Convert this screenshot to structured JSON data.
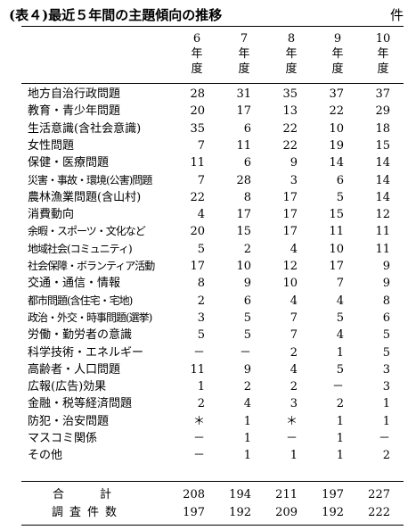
{
  "title": "(表４)最近５年間の主題傾向の推移",
  "unit": "件",
  "columns": [
    {
      "c1": "6",
      "c2": "年",
      "c3": "度"
    },
    {
      "c1": "7",
      "c2": "年",
      "c3": "度"
    },
    {
      "c1": "8",
      "c2": "年",
      "c3": "度"
    },
    {
      "c1": "9",
      "c2": "年",
      "c3": "度"
    },
    {
      "c1": "10",
      "c2": "年",
      "c3": "度"
    }
  ],
  "rows": [
    {
      "label": "地方自治行政問題",
      "v": [
        "28",
        "31",
        "35",
        "37",
        "37"
      ]
    },
    {
      "label": "教育・青少年問題",
      "v": [
        "20",
        "17",
        "13",
        "22",
        "29"
      ]
    },
    {
      "label": "生活意識(含社会意識)",
      "v": [
        "35",
        "6",
        "22",
        "10",
        "18"
      ]
    },
    {
      "label": "女性問題",
      "v": [
        "7",
        "11",
        "22",
        "19",
        "15"
      ]
    },
    {
      "label": "保健・医療問題",
      "v": [
        "11",
        "6",
        "9",
        "14",
        "14"
      ]
    },
    {
      "label": "災害・事故・環境(公害)問題",
      "v": [
        "7",
        "28",
        "3",
        "6",
        "14"
      ]
    },
    {
      "label": "農林漁業問題(含山村)",
      "v": [
        "22",
        "8",
        "17",
        "5",
        "14"
      ]
    },
    {
      "label": "消費動向",
      "v": [
        "4",
        "17",
        "17",
        "15",
        "12"
      ]
    },
    {
      "label": "余暇・スポーツ・文化など",
      "v": [
        "20",
        "15",
        "17",
        "11",
        "11"
      ]
    },
    {
      "label": "地域社会(コミュニティ)",
      "v": [
        "5",
        "2",
        "4",
        "10",
        "11"
      ]
    },
    {
      "label": "社会保障・ボランティア活動",
      "v": [
        "17",
        "10",
        "12",
        "17",
        "9"
      ]
    },
    {
      "label": "交通・通信・情報",
      "v": [
        "8",
        "9",
        "10",
        "7",
        "9"
      ]
    },
    {
      "label": "都市問題(含住宅・宅地)",
      "v": [
        "2",
        "6",
        "4",
        "4",
        "8"
      ]
    },
    {
      "label": "政治・外交・時事問題(選挙)",
      "v": [
        "3",
        "5",
        "7",
        "5",
        "6"
      ]
    },
    {
      "label": "労働・勤労者の意識",
      "v": [
        "5",
        "5",
        "7",
        "4",
        "5"
      ]
    },
    {
      "label": "科学技術・エネルギー",
      "v": [
        "－",
        "－",
        "2",
        "1",
        "5"
      ]
    },
    {
      "label": "高齢者・人口問題",
      "v": [
        "11",
        "9",
        "4",
        "5",
        "3"
      ]
    },
    {
      "label": "広報(広告)効果",
      "v": [
        "1",
        "2",
        "2",
        "－",
        "3"
      ]
    },
    {
      "label": "金融・税等経済問題",
      "v": [
        "2",
        "4",
        "3",
        "2",
        "1"
      ]
    },
    {
      "label": "防犯・治安問題",
      "v": [
        "＊",
        "1",
        "＊",
        "1",
        "1"
      ]
    },
    {
      "label": "マスコミ関係",
      "v": [
        "－",
        "1",
        "－",
        "1",
        "－"
      ]
    },
    {
      "label": "その他",
      "v": [
        "－",
        "1",
        "1",
        "1",
        "2"
      ]
    }
  ],
  "totals": {
    "label": "合計",
    "v": [
      "208",
      "194",
      "211",
      "197",
      "227"
    ]
  },
  "survey_count": {
    "label": "調査件数",
    "v": [
      "197",
      "192",
      "209",
      "192",
      "222"
    ]
  }
}
